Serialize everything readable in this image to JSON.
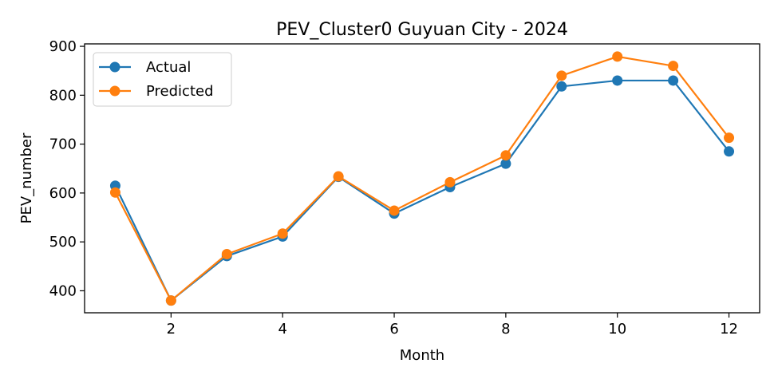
{
  "chart_data": {
    "type": "line",
    "title": "PEV_Cluster0 Guyuan City - 2024",
    "xlabel": "Month",
    "ylabel": "PEV_number",
    "x": [
      1,
      2,
      3,
      4,
      5,
      6,
      7,
      8,
      9,
      10,
      11,
      12
    ],
    "xlim": [
      0.45,
      12.55
    ],
    "ylim": [
      355,
      905
    ],
    "xticks": [
      2,
      4,
      6,
      8,
      10,
      12
    ],
    "yticks": [
      400,
      500,
      600,
      700,
      800,
      900
    ],
    "grid": false,
    "legend_position": "top-left",
    "series": [
      {
        "name": "Actual",
        "color": "#1f77b4",
        "marker": "circle",
        "values": [
          615,
          380,
          471,
          511,
          633,
          558,
          612,
          660,
          818,
          830,
          830,
          685
        ]
      },
      {
        "name": "Predicted",
        "color": "#ff7f0e",
        "marker": "circle",
        "values": [
          601,
          380,
          475,
          517,
          634,
          564,
          622,
          677,
          840,
          879,
          860,
          713
        ]
      }
    ]
  }
}
